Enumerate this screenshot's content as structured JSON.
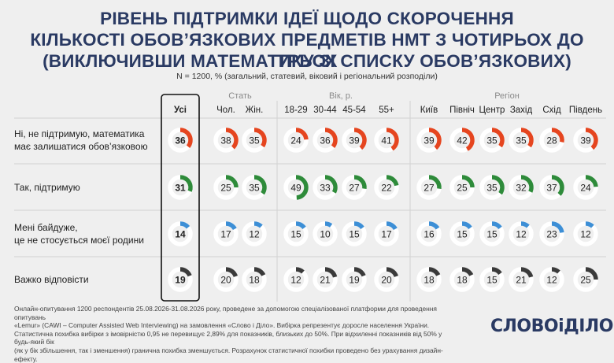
{
  "title_lines": [
    "РІВЕНЬ ПІДТРИМКИ ІДЕЇ ЩОДО СКОРОЧЕННЯ",
    "КІЛЬКОСТІ ОБОВ’ЯЗКОВИХ ПРЕДМЕТІВ НМТ З ЧОТИРЬОХ ДО ТРЬОХ",
    "(ВИКЛЮЧИВШИ МАТЕМАТИКУ ЗІ СПИСКУ ОБОВ’ЯЗКОВИХ)"
  ],
  "subtitle": "N = 1200, % (загальний, статевий, віковий і регіональний розподіли)",
  "chart_data": {
    "type": "table",
    "groups": [
      {
        "label": "",
        "columns": [
          "Усі"
        ]
      },
      {
        "label": "Стать",
        "columns": [
          "Чол.",
          "Жін."
        ]
      },
      {
        "label": "Вік, р.",
        "columns": [
          "18-29",
          "30-44",
          "45-54",
          "55+"
        ]
      },
      {
        "label": "Регіон",
        "columns": [
          "Київ",
          "Північ",
          "Центр",
          "Захід",
          "Схід",
          "Південь"
        ]
      }
    ],
    "rows": [
      {
        "label": [
          "Ні, не підтримую, математика",
          "має залишатися обов’язковою"
        ],
        "color": "#e5451f",
        "values": [
          36,
          38,
          35,
          24,
          36,
          39,
          41,
          39,
          42,
          35,
          35,
          28,
          39
        ]
      },
      {
        "label": [
          "Так, підтримую"
        ],
        "color": "#2e8b3a",
        "values": [
          31,
          25,
          35,
          49,
          33,
          27,
          22,
          27,
          25,
          35,
          32,
          37,
          24
        ]
      },
      {
        "label": [
          "Мені байдуже,",
          "це не стосується моєї родини"
        ],
        "color": "#3d8fd6",
        "values": [
          14,
          17,
          12,
          15,
          10,
          15,
          17,
          16,
          15,
          15,
          12,
          23,
          12
        ]
      },
      {
        "label": [
          "Важко відповісти"
        ],
        "color": "#3a3a3a",
        "values": [
          19,
          20,
          18,
          12,
          21,
          19,
          20,
          18,
          18,
          15,
          21,
          12,
          25
        ]
      }
    ],
    "track_color": "#ffffff",
    "max": 100
  },
  "footnote_lines": [
    "Онлайн-опитування 1200 респондентів 25.08.2026-31.08.2026 року, проведене за допомогою спеціалізованої платформи для проведення опитувань",
    "«Lemur» (CAWI – Computer Assisted Web Interviewing) на замовлення «Слово і Діло». Вибірка репрезентує доросле населення України.",
    "Статистична похибка вибірки з імовірністю 0,95 не перевищує 2,89% для показників, близьких до 50%. При відхиленні показників від 50% у будь-який бік",
    "(як у бік збільшення, так і зменшення) гранична похибка зменшується. Розрахунок статистичної похибки проведено без урахування дизайн-ефекту."
  ],
  "logo": {
    "word1": "СЛОВО",
    "amp": "і",
    "word2": "ДІЛО"
  }
}
